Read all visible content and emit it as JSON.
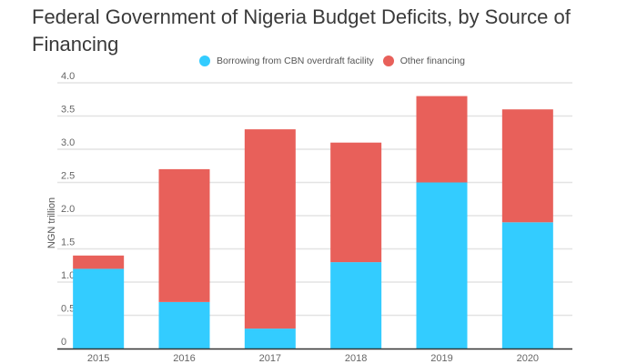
{
  "chart_data": {
    "type": "bar",
    "stacked": true,
    "title": "Federal Government of Nigeria Budget Deficits, by Source of Financing",
    "xlabel": "",
    "ylabel": "NGN trillion",
    "ylim": [
      0,
      4.0
    ],
    "yticks": [
      "0",
      "0.5",
      "1.0",
      "1.5",
      "2.0",
      "2.5",
      "3.0",
      "3.5",
      "4.0"
    ],
    "ytick_values": [
      0,
      0.5,
      1.0,
      1.5,
      2.0,
      2.5,
      3.0,
      3.5,
      4.0
    ],
    "grid": true,
    "legend_position": "top-center",
    "categories": [
      "2015",
      "2016",
      "2017",
      "2018",
      "2019",
      "2020"
    ],
    "series": [
      {
        "name": "Borrowing from CBN overdraft facility",
        "color": "#33ccff",
        "values": [
          1.2,
          0.7,
          0.3,
          1.3,
          2.5,
          1.9
        ]
      },
      {
        "name": "Other financing",
        "color": "#e8605a",
        "values": [
          0.2,
          2.0,
          3.0,
          1.8,
          1.3,
          1.7
        ]
      }
    ]
  }
}
